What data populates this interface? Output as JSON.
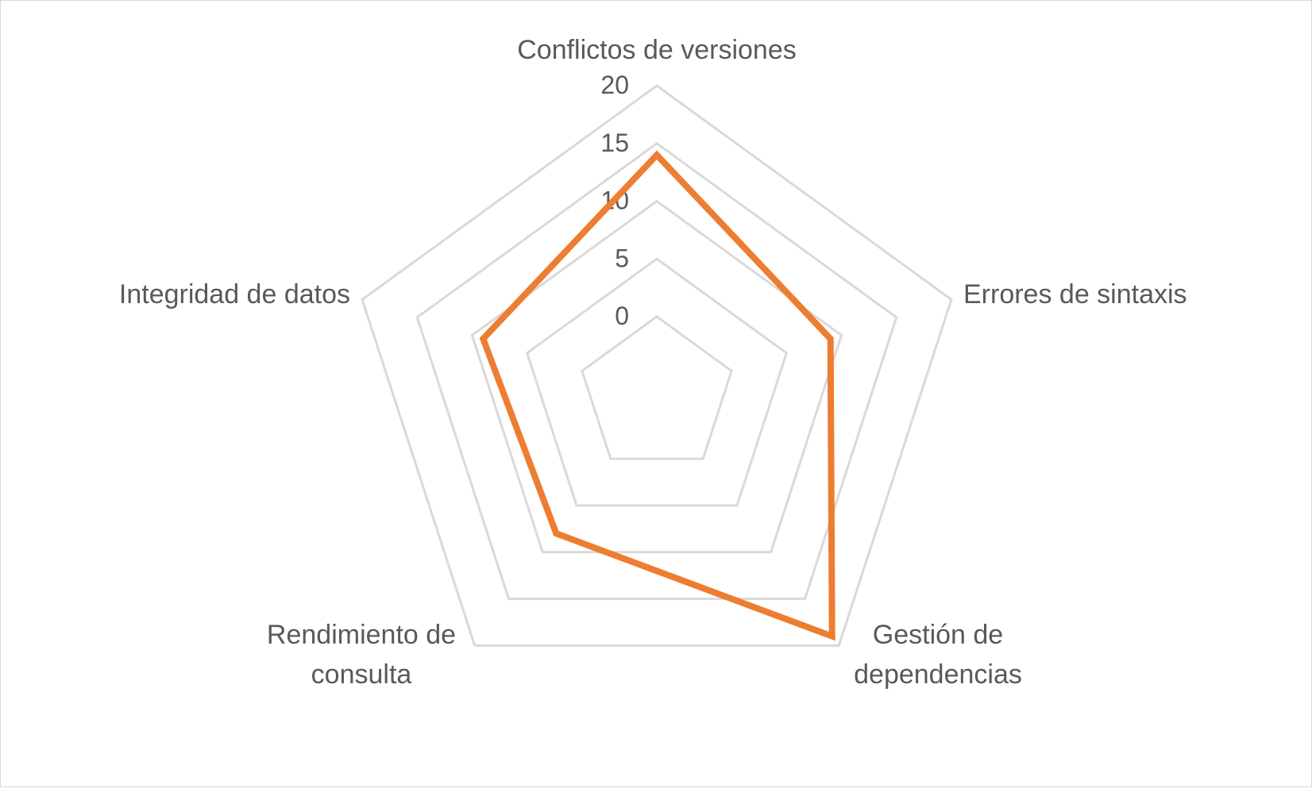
{
  "chart_data": {
    "type": "radar",
    "categories": [
      "Conflictos de versiones",
      "Errores de sintaxis",
      "Gestión de dependencias",
      "Rendimiento de consulta",
      "Integridad de datos"
    ],
    "category_label_lines": [
      [
        "Conflictos de versiones"
      ],
      [
        "Errores de sintaxis"
      ],
      [
        "Gestión de",
        "dependencias"
      ],
      [
        "Rendimiento de",
        "consulta"
      ],
      [
        "Integridad de datos"
      ]
    ],
    "series": [
      {
        "values": [
          14,
          9,
          19,
          8,
          9
        ],
        "color": "#ed7d31"
      }
    ],
    "ticks": [
      "0",
      "5",
      "10",
      "15",
      "20"
    ],
    "rlim": [
      0,
      20
    ],
    "grid": true,
    "legend": "none",
    "grid_color": "#d9d9d9",
    "text_color": "#595959"
  }
}
